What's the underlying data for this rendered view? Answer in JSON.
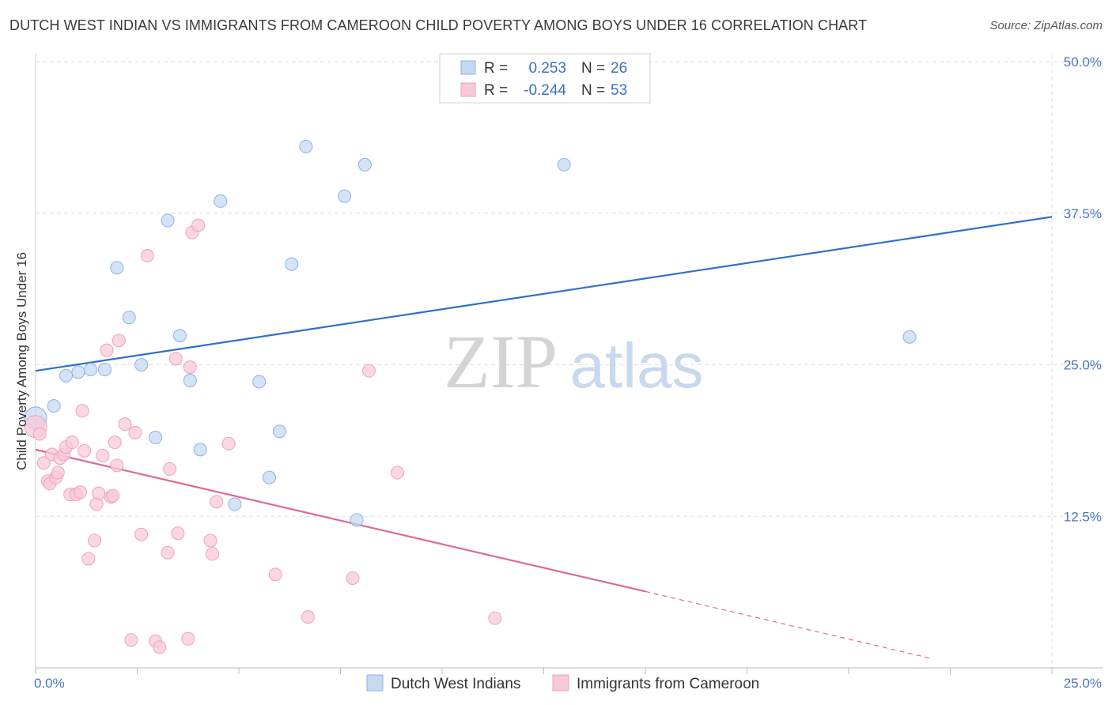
{
  "title": "DUTCH WEST INDIAN VS IMMIGRANTS FROM CAMEROON CHILD POVERTY AMONG BOYS UNDER 16 CORRELATION CHART",
  "source": "Source: ZipAtlas.com",
  "watermark": {
    "zip": "ZIP",
    "atlas": "atlas"
  },
  "colors": {
    "blue_fill": "#c6d9f1",
    "blue_stroke": "#8db3e2",
    "blue_line": "#2f6fcc",
    "pink_fill": "#f8c9d8",
    "pink_stroke": "#eea2bb",
    "pink_line": "#e0679a",
    "tick_label": "#4a78c4",
    "grid": "#dddddd"
  },
  "legend": {
    "rows": [
      {
        "r_label": "R =",
        "r_value": "0.253",
        "n_label": "N =",
        "n_value": "26"
      },
      {
        "r_label": "R =",
        "r_value": "-0.244",
        "n_label": "N =",
        "n_value": "53"
      }
    ]
  },
  "chart_data": {
    "type": "scatter",
    "xlabel": "",
    "ylabel": "Child Poverty Among Boys Under 16",
    "xlim": [
      0,
      25
    ],
    "ylim": [
      0,
      50
    ],
    "x_tick_labels": [
      "0.0%",
      "25.0%"
    ],
    "y_ticks": [
      12.5,
      25.0,
      37.5,
      50.0
    ],
    "y_tick_labels": [
      "12.5%",
      "25.0%",
      "37.5%",
      "50.0%"
    ],
    "grid": true,
    "legend_position": "top-center",
    "series": [
      {
        "name": "Dutch West Indians",
        "color": "blue",
        "trend": {
          "x0": 0,
          "y0": 24.5,
          "x1": 25,
          "y1": 37.2
        },
        "points": [
          [
            0.0,
            20.6
          ],
          [
            0.45,
            21.6
          ],
          [
            0.75,
            24.1
          ],
          [
            1.05,
            24.4
          ],
          [
            1.35,
            24.6
          ],
          [
            1.7,
            24.6
          ],
          [
            2.0,
            33.0
          ],
          [
            2.3,
            28.9
          ],
          [
            2.6,
            25.0
          ],
          [
            2.95,
            19.0
          ],
          [
            3.25,
            36.9
          ],
          [
            3.55,
            27.4
          ],
          [
            3.8,
            23.7
          ],
          [
            4.05,
            18.0
          ],
          [
            4.55,
            38.5
          ],
          [
            4.9,
            13.5
          ],
          [
            5.5,
            23.6
          ],
          [
            5.75,
            15.7
          ],
          [
            6.0,
            19.5
          ],
          [
            6.3,
            33.3
          ],
          [
            6.65,
            43.0
          ],
          [
            7.6,
            38.9
          ],
          [
            7.9,
            12.2
          ],
          [
            8.1,
            41.5
          ],
          [
            13.0,
            41.5
          ],
          [
            21.5,
            27.3
          ]
        ]
      },
      {
        "name": "Immigrants from Cameroon",
        "color": "pink",
        "trend": {
          "x0": 0,
          "y0": 18.0,
          "x1": 15,
          "y1": 6.3
        },
        "trend_dashed": {
          "x0": 15,
          "y0": 6.3,
          "x1": 22,
          "y1": 0.8
        },
        "points": [
          [
            0.0,
            19.9
          ],
          [
            0.1,
            19.3
          ],
          [
            0.2,
            16.9
          ],
          [
            0.3,
            15.4
          ],
          [
            0.35,
            15.2
          ],
          [
            0.4,
            17.6
          ],
          [
            0.5,
            15.7
          ],
          [
            0.55,
            16.1
          ],
          [
            0.6,
            17.3
          ],
          [
            0.7,
            17.6
          ],
          [
            0.75,
            18.2
          ],
          [
            0.85,
            14.3
          ],
          [
            0.9,
            18.6
          ],
          [
            1.0,
            14.3
          ],
          [
            1.1,
            14.5
          ],
          [
            1.15,
            21.2
          ],
          [
            1.2,
            17.9
          ],
          [
            1.3,
            9.0
          ],
          [
            1.45,
            10.5
          ],
          [
            1.5,
            13.5
          ],
          [
            1.55,
            14.4
          ],
          [
            1.65,
            17.5
          ],
          [
            1.75,
            26.2
          ],
          [
            1.85,
            14.1
          ],
          [
            1.9,
            14.2
          ],
          [
            1.95,
            18.6
          ],
          [
            2.0,
            16.7
          ],
          [
            2.05,
            27.0
          ],
          [
            2.2,
            20.1
          ],
          [
            2.35,
            2.3
          ],
          [
            2.45,
            19.4
          ],
          [
            2.6,
            11.0
          ],
          [
            2.75,
            34.0
          ],
          [
            2.95,
            2.2
          ],
          [
            3.05,
            1.7
          ],
          [
            3.25,
            9.5
          ],
          [
            3.3,
            16.4
          ],
          [
            3.45,
            25.5
          ],
          [
            3.5,
            11.1
          ],
          [
            3.75,
            2.4
          ],
          [
            3.8,
            24.8
          ],
          [
            3.85,
            35.9
          ],
          [
            4.0,
            36.5
          ],
          [
            4.3,
            10.5
          ],
          [
            4.35,
            9.4
          ],
          [
            4.45,
            13.7
          ],
          [
            4.75,
            18.5
          ],
          [
            5.9,
            7.7
          ],
          [
            6.7,
            4.2
          ],
          [
            7.8,
            7.4
          ],
          [
            8.2,
            24.5
          ],
          [
            8.9,
            16.1
          ],
          [
            11.3,
            4.1
          ]
        ]
      }
    ]
  }
}
